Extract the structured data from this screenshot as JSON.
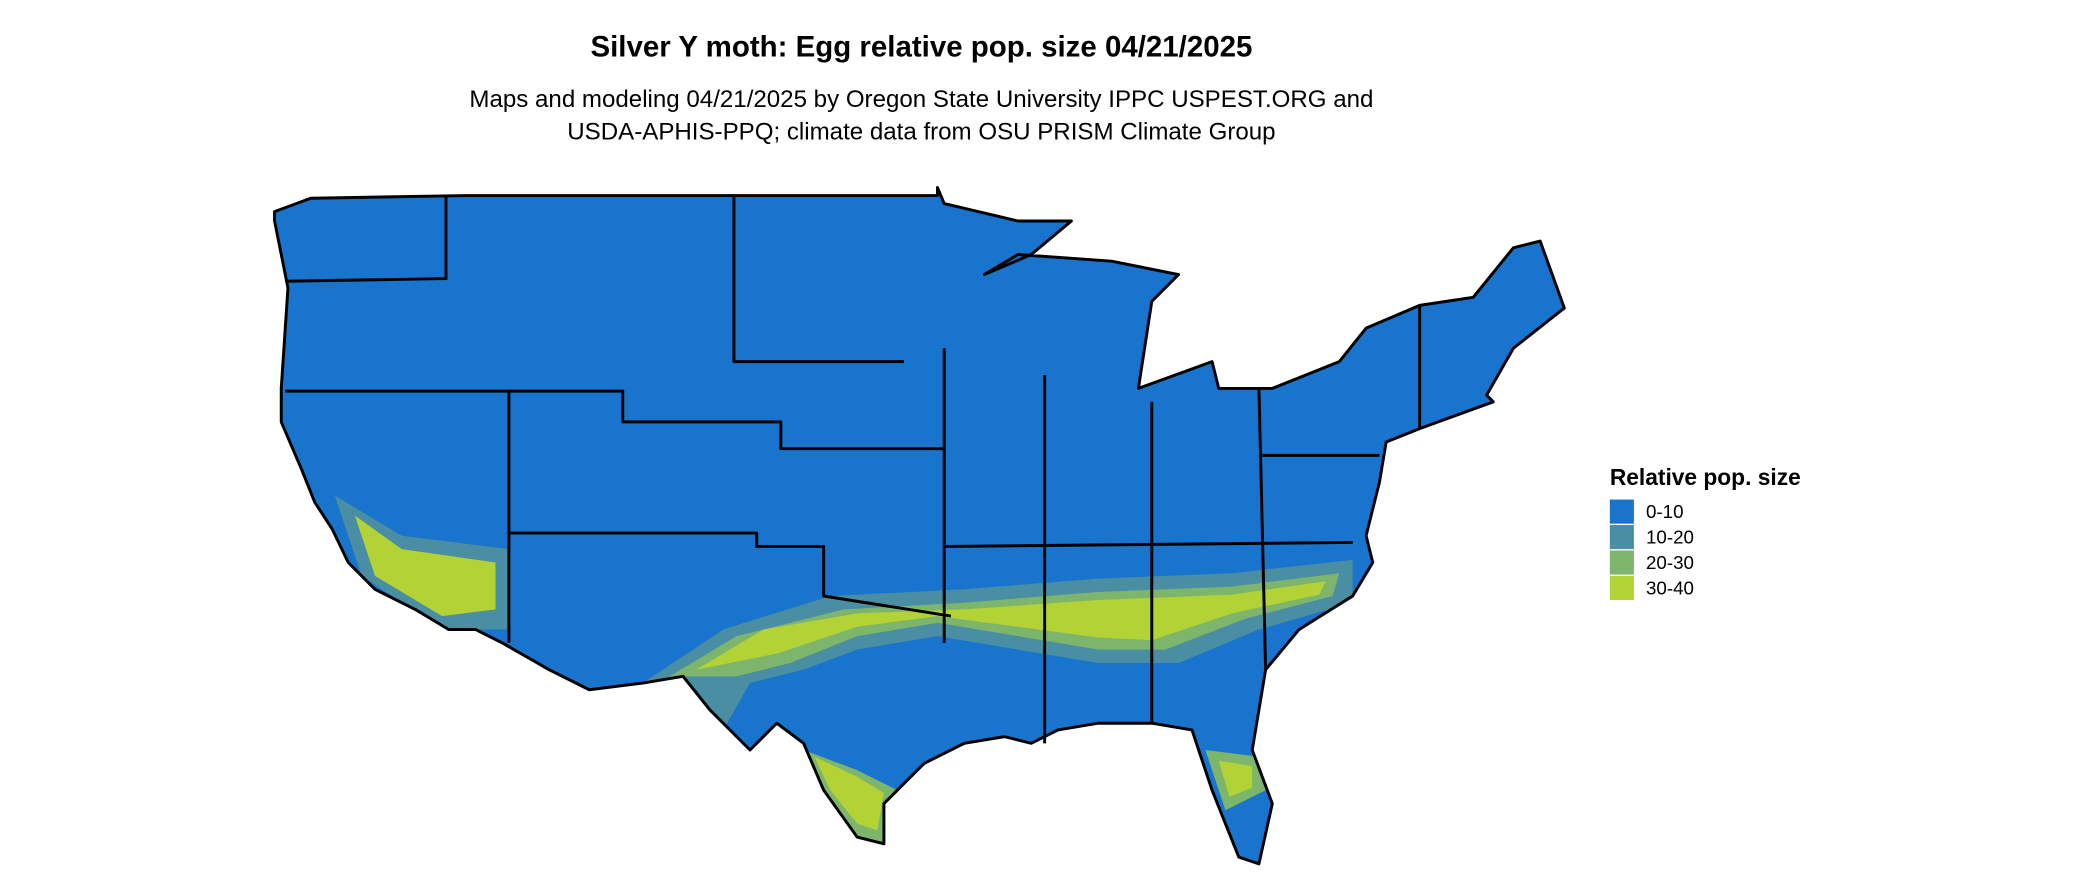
{
  "title": "Silver Y moth: Egg relative pop. size 04/21/2025",
  "subtitle": [
    "Maps and modeling 04/21/2025 by Oregon State University IPPC USPEST.ORG and",
    "USDA-APHIS-PPQ; climate data from OSU PRISM Climate Group"
  ],
  "legend": {
    "title": "Relative pop. size",
    "items": [
      {
        "label": "0-10",
        "color": "#1874cd"
      },
      {
        "label": "10-20",
        "color": "#4a8ea3"
      },
      {
        "label": "20-30",
        "color": "#7db56c"
      },
      {
        "label": "30-40",
        "color": "#b2d235"
      }
    ]
  }
}
